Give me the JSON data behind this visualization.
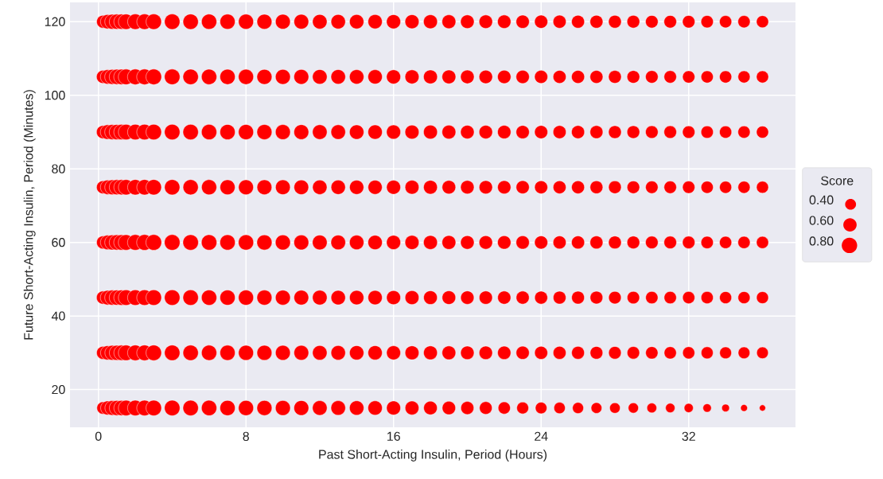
{
  "chart_data": {
    "type": "bubble",
    "xlabel": "Past Short-Acting Insulin, Period (Hours)",
    "ylabel": "Future Short-Acting Insulin, Period (Minutes)",
    "legend_title": "Score",
    "size_legend": [
      {
        "value": 0.4,
        "label": "0.40"
      },
      {
        "value": 0.6,
        "label": "0.60"
      },
      {
        "value": 0.8,
        "label": "0.80"
      }
    ],
    "grid": true,
    "marker": "circle",
    "xlim": [
      -1.54,
      37.79
    ],
    "ylim": [
      9.75,
      125.25
    ],
    "xticks": [
      0,
      8,
      16,
      24,
      32
    ],
    "yticks": [
      20,
      40,
      60,
      80,
      100,
      120
    ],
    "x": [
      0.25,
      0.5,
      0.75,
      1,
      1.25,
      1.5,
      2,
      2.5,
      3,
      4,
      5,
      6,
      7,
      8,
      9,
      10,
      11,
      12,
      13,
      14,
      15,
      16,
      17,
      18,
      19,
      20,
      21,
      22,
      23,
      24,
      25,
      26,
      27,
      28,
      29,
      30,
      31,
      32,
      33,
      34,
      35,
      36
    ],
    "series": [
      {
        "color": "#ff0000",
        "values": [
          15,
          15,
          15,
          15,
          15,
          15,
          15,
          15,
          15,
          15,
          15,
          15,
          15,
          15,
          15,
          15,
          15,
          15,
          15,
          15,
          15,
          15,
          15,
          15,
          15,
          15,
          15,
          15,
          15,
          15,
          15,
          15,
          15,
          15,
          15,
          15,
          15,
          15,
          15,
          15,
          15,
          15
        ],
        "sizes": [
          0.51,
          0.66,
          0.72,
          0.76,
          0.78,
          0.8,
          0.81,
          0.81,
          0.81,
          0.81,
          0.8,
          0.79,
          0.78,
          0.77,
          0.76,
          0.75,
          0.74,
          0.72,
          0.71,
          0.7,
          0.69,
          0.66,
          0.64,
          0.62,
          0.6,
          0.57,
          0.54,
          0.5,
          0.47,
          0.45,
          0.43,
          0.41,
          0.39,
          0.37,
          0.35,
          0.32,
          0.3,
          0.28,
          0.24,
          0.2,
          0.16,
          0.13
        ]
      },
      {
        "color": "#ff0000",
        "values": [
          30,
          30,
          30,
          30,
          30,
          30,
          30,
          30,
          30,
          30,
          30,
          30,
          30,
          30,
          30,
          30,
          30,
          30,
          30,
          30,
          30,
          30,
          30,
          30,
          30,
          30,
          30,
          30,
          30,
          30,
          30,
          30,
          30,
          30,
          30,
          30,
          30,
          30,
          30,
          30,
          30,
          30
        ],
        "sizes": [
          0.56,
          0.68,
          0.73,
          0.76,
          0.78,
          0.8,
          0.81,
          0.81,
          0.81,
          0.8,
          0.79,
          0.78,
          0.77,
          0.76,
          0.75,
          0.74,
          0.73,
          0.71,
          0.7,
          0.69,
          0.68,
          0.66,
          0.65,
          0.64,
          0.63,
          0.61,
          0.6,
          0.59,
          0.58,
          0.57,
          0.56,
          0.55,
          0.54,
          0.53,
          0.52,
          0.51,
          0.5,
          0.49,
          0.48,
          0.47,
          0.46,
          0.45
        ]
      },
      {
        "color": "#ff0000",
        "values": [
          45,
          45,
          45,
          45,
          45,
          45,
          45,
          45,
          45,
          45,
          45,
          45,
          45,
          45,
          45,
          45,
          45,
          45,
          45,
          45,
          45,
          45,
          45,
          45,
          45,
          45,
          45,
          45,
          45,
          45,
          45,
          45,
          45,
          45,
          45,
          45,
          45,
          45,
          45,
          45,
          45,
          45
        ],
        "sizes": [
          0.58,
          0.71,
          0.76,
          0.78,
          0.79,
          0.8,
          0.81,
          0.81,
          0.81,
          0.81,
          0.8,
          0.79,
          0.78,
          0.77,
          0.76,
          0.75,
          0.73,
          0.72,
          0.7,
          0.69,
          0.68,
          0.66,
          0.65,
          0.63,
          0.62,
          0.6,
          0.59,
          0.58,
          0.57,
          0.56,
          0.55,
          0.55,
          0.54,
          0.53,
          0.52,
          0.51,
          0.51,
          0.5,
          0.5,
          0.49,
          0.49,
          0.48
        ]
      },
      {
        "color": "#ff0000",
        "values": [
          60,
          60,
          60,
          60,
          60,
          60,
          60,
          60,
          60,
          60,
          60,
          60,
          60,
          60,
          60,
          60,
          60,
          60,
          60,
          60,
          60,
          60,
          60,
          60,
          60,
          60,
          60,
          60,
          60,
          60,
          60,
          60,
          60,
          60,
          60,
          60,
          60,
          60,
          60,
          60,
          60,
          60
        ],
        "sizes": [
          0.56,
          0.7,
          0.76,
          0.78,
          0.8,
          0.81,
          0.82,
          0.83,
          0.83,
          0.82,
          0.81,
          0.8,
          0.79,
          0.78,
          0.77,
          0.76,
          0.74,
          0.73,
          0.72,
          0.7,
          0.69,
          0.67,
          0.66,
          0.65,
          0.64,
          0.62,
          0.61,
          0.6,
          0.59,
          0.58,
          0.57,
          0.57,
          0.56,
          0.55,
          0.54,
          0.53,
          0.53,
          0.52,
          0.51,
          0.5,
          0.5,
          0.49
        ]
      },
      {
        "color": "#ff0000",
        "values": [
          75,
          75,
          75,
          75,
          75,
          75,
          75,
          75,
          75,
          75,
          75,
          75,
          75,
          75,
          75,
          75,
          75,
          75,
          75,
          75,
          75,
          75,
          75,
          75,
          75,
          75,
          75,
          75,
          75,
          75,
          75,
          75,
          75,
          75,
          75,
          75,
          75,
          75,
          75,
          75,
          75,
          75
        ],
        "sizes": [
          0.57,
          0.7,
          0.75,
          0.77,
          0.78,
          0.79,
          0.8,
          0.8,
          0.8,
          0.79,
          0.78,
          0.77,
          0.76,
          0.75,
          0.74,
          0.73,
          0.72,
          0.7,
          0.69,
          0.68,
          0.67,
          0.66,
          0.65,
          0.64,
          0.62,
          0.61,
          0.6,
          0.59,
          0.58,
          0.57,
          0.56,
          0.56,
          0.55,
          0.54,
          0.53,
          0.52,
          0.52,
          0.51,
          0.5,
          0.49,
          0.49,
          0.48
        ]
      },
      {
        "color": "#ff0000",
        "values": [
          90,
          90,
          90,
          90,
          90,
          90,
          90,
          90,
          90,
          90,
          90,
          90,
          90,
          90,
          90,
          90,
          90,
          90,
          90,
          90,
          90,
          90,
          90,
          90,
          90,
          90,
          90,
          90,
          90,
          90,
          90,
          90,
          90,
          90,
          90,
          90,
          90,
          90,
          90,
          90,
          90,
          90
        ],
        "sizes": [
          0.58,
          0.71,
          0.76,
          0.78,
          0.79,
          0.8,
          0.81,
          0.81,
          0.81,
          0.81,
          0.8,
          0.79,
          0.78,
          0.77,
          0.76,
          0.75,
          0.74,
          0.72,
          0.71,
          0.7,
          0.69,
          0.67,
          0.66,
          0.65,
          0.64,
          0.62,
          0.61,
          0.6,
          0.59,
          0.58,
          0.57,
          0.57,
          0.56,
          0.55,
          0.54,
          0.53,
          0.53,
          0.52,
          0.51,
          0.5,
          0.5,
          0.49
        ]
      },
      {
        "color": "#ff0000",
        "values": [
          105,
          105,
          105,
          105,
          105,
          105,
          105,
          105,
          105,
          105,
          105,
          105,
          105,
          105,
          105,
          105,
          105,
          105,
          105,
          105,
          105,
          105,
          105,
          105,
          105,
          105,
          105,
          105,
          105,
          105,
          105,
          105,
          105,
          105,
          105,
          105,
          105,
          105,
          105,
          105,
          105,
          105
        ],
        "sizes": [
          0.58,
          0.7,
          0.76,
          0.78,
          0.8,
          0.81,
          0.82,
          0.82,
          0.82,
          0.81,
          0.8,
          0.79,
          0.78,
          0.77,
          0.76,
          0.75,
          0.74,
          0.72,
          0.71,
          0.7,
          0.69,
          0.67,
          0.66,
          0.65,
          0.64,
          0.62,
          0.61,
          0.6,
          0.59,
          0.58,
          0.57,
          0.57,
          0.56,
          0.55,
          0.54,
          0.53,
          0.52,
          0.51,
          0.5,
          0.5,
          0.49,
          0.49
        ]
      },
      {
        "color": "#ff0000",
        "values": [
          120,
          120,
          120,
          120,
          120,
          120,
          120,
          120,
          120,
          120,
          120,
          120,
          120,
          120,
          120,
          120,
          120,
          120,
          120,
          120,
          120,
          120,
          120,
          120,
          120,
          120,
          120,
          120,
          120,
          120,
          120,
          120,
          120,
          120,
          120,
          120,
          120,
          120,
          120,
          120,
          120,
          120
        ],
        "sizes": [
          0.55,
          0.69,
          0.75,
          0.77,
          0.78,
          0.79,
          0.8,
          0.8,
          0.8,
          0.8,
          0.79,
          0.78,
          0.77,
          0.76,
          0.75,
          0.74,
          0.73,
          0.71,
          0.7,
          0.69,
          0.68,
          0.67,
          0.66,
          0.65,
          0.64,
          0.62,
          0.61,
          0.6,
          0.59,
          0.58,
          0.57,
          0.56,
          0.56,
          0.55,
          0.54,
          0.53,
          0.53,
          0.52,
          0.51,
          0.5,
          0.5,
          0.49
        ]
      }
    ]
  }
}
